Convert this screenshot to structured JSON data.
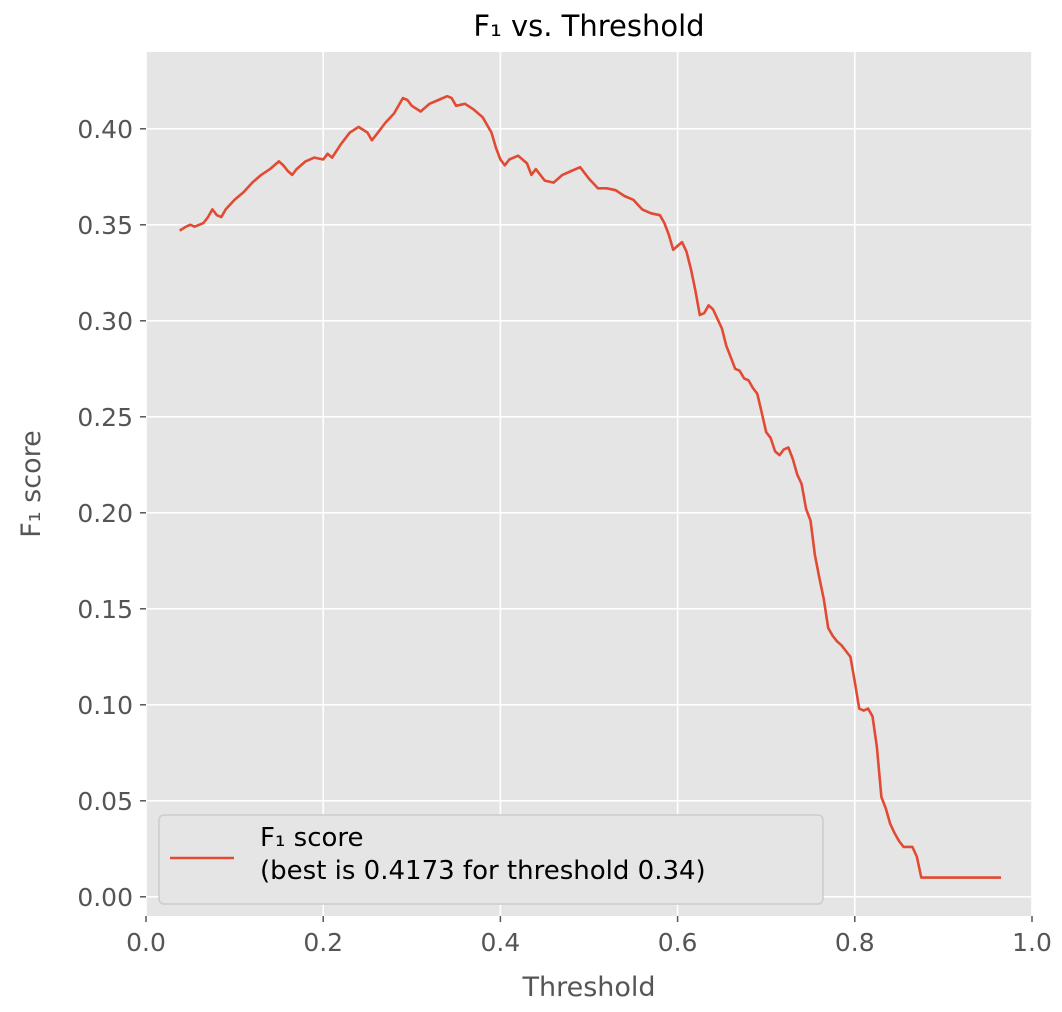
{
  "chart_data": {
    "type": "line",
    "title": "F₁ vs. Threshold",
    "xlabel": "Threshold",
    "ylabel": "F₁ score",
    "xlim": [
      0.0,
      1.0
    ],
    "ylim": [
      -0.01,
      0.44
    ],
    "xticks": [
      0.0,
      0.2,
      0.4,
      0.6,
      0.8,
      1.0
    ],
    "xtick_labels": [
      "0.0",
      "0.2",
      "0.4",
      "0.6",
      "0.8",
      "1.0"
    ],
    "yticks": [
      0.0,
      0.05,
      0.1,
      0.15,
      0.2,
      0.25,
      0.3,
      0.35,
      0.4
    ],
    "ytick_labels": [
      "0.00",
      "0.05",
      "0.10",
      "0.15",
      "0.20",
      "0.25",
      "0.30",
      "0.35",
      "0.40"
    ],
    "grid": true,
    "legend_position": "lower-left",
    "series": [
      {
        "name": "F₁ score\n(best is 0.4173 for threshold 0.34)",
        "color": "#e24a33",
        "x": [
          0.038,
          0.045,
          0.05,
          0.055,
          0.06,
          0.065,
          0.07,
          0.075,
          0.08,
          0.085,
          0.09,
          0.1,
          0.11,
          0.12,
          0.13,
          0.14,
          0.15,
          0.155,
          0.16,
          0.165,
          0.17,
          0.18,
          0.19,
          0.2,
          0.205,
          0.21,
          0.22,
          0.23,
          0.24,
          0.25,
          0.255,
          0.26,
          0.27,
          0.28,
          0.29,
          0.295,
          0.3,
          0.31,
          0.32,
          0.33,
          0.34,
          0.345,
          0.35,
          0.36,
          0.37,
          0.38,
          0.39,
          0.395,
          0.4,
          0.405,
          0.41,
          0.42,
          0.43,
          0.435,
          0.44,
          0.45,
          0.46,
          0.47,
          0.48,
          0.49,
          0.5,
          0.51,
          0.52,
          0.53,
          0.54,
          0.55,
          0.56,
          0.57,
          0.58,
          0.585,
          0.59,
          0.595,
          0.6,
          0.605,
          0.61,
          0.615,
          0.62,
          0.625,
          0.63,
          0.635,
          0.64,
          0.645,
          0.65,
          0.655,
          0.66,
          0.665,
          0.67,
          0.675,
          0.68,
          0.685,
          0.69,
          0.695,
          0.7,
          0.705,
          0.71,
          0.715,
          0.72,
          0.725,
          0.73,
          0.735,
          0.74,
          0.745,
          0.75,
          0.755,
          0.76,
          0.765,
          0.77,
          0.775,
          0.78,
          0.785,
          0.79,
          0.795,
          0.8,
          0.805,
          0.81,
          0.815,
          0.82,
          0.825,
          0.83,
          0.835,
          0.84,
          0.845,
          0.85,
          0.855,
          0.86,
          0.865,
          0.87,
          0.875,
          0.88,
          0.9,
          0.92,
          0.94,
          0.965
        ],
        "y": [
          0.347,
          0.349,
          0.35,
          0.349,
          0.35,
          0.351,
          0.354,
          0.358,
          0.355,
          0.354,
          0.358,
          0.363,
          0.367,
          0.372,
          0.376,
          0.379,
          0.383,
          0.381,
          0.378,
          0.376,
          0.379,
          0.383,
          0.385,
          0.384,
          0.387,
          0.385,
          0.392,
          0.398,
          0.401,
          0.398,
          0.394,
          0.397,
          0.403,
          0.408,
          0.416,
          0.415,
          0.412,
          0.409,
          0.413,
          0.415,
          0.417,
          0.416,
          0.412,
          0.413,
          0.41,
          0.406,
          0.398,
          0.39,
          0.384,
          0.381,
          0.384,
          0.386,
          0.382,
          0.376,
          0.379,
          0.373,
          0.372,
          0.376,
          0.378,
          0.38,
          0.374,
          0.369,
          0.369,
          0.368,
          0.365,
          0.363,
          0.358,
          0.356,
          0.355,
          0.351,
          0.345,
          0.337,
          0.339,
          0.341,
          0.336,
          0.327,
          0.316,
          0.303,
          0.304,
          0.308,
          0.306,
          0.301,
          0.296,
          0.287,
          0.281,
          0.275,
          0.274,
          0.27,
          0.269,
          0.265,
          0.262,
          0.252,
          0.242,
          0.239,
          0.232,
          0.23,
          0.233,
          0.234,
          0.228,
          0.22,
          0.215,
          0.202,
          0.196,
          0.178,
          0.166,
          0.155,
          0.14,
          0.136,
          0.133,
          0.131,
          0.128,
          0.125,
          0.112,
          0.098,
          0.097,
          0.098,
          0.094,
          0.078,
          0.052,
          0.046,
          0.038,
          0.033,
          0.029,
          0.026,
          0.026,
          0.026,
          0.021,
          0.01,
          0.01,
          0.01,
          0.01,
          0.01,
          0.01
        ]
      }
    ]
  }
}
